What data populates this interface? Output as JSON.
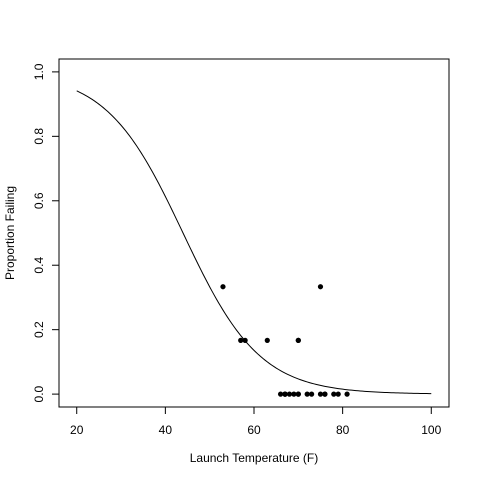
{
  "chart_data": {
    "type": "scatter",
    "title": "",
    "xlabel": "Launch Temperature (F)",
    "ylabel": "Proportion Failing",
    "xlim": [
      16,
      104
    ],
    "ylim": [
      -0.04,
      1.04
    ],
    "x_ticks": [
      20,
      40,
      60,
      80,
      100
    ],
    "y_ticks": [
      0.0,
      0.2,
      0.4,
      0.6,
      0.8,
      1.0
    ],
    "x_tick_labels": [
      "20",
      "40",
      "60",
      "80",
      "100"
    ],
    "y_tick_labels": [
      "0.0",
      "0.2",
      "0.4",
      "0.6",
      "0.8",
      "1.0"
    ],
    "grid": false,
    "points": [
      {
        "x": 53,
        "y": 0.3333
      },
      {
        "x": 57,
        "y": 0.1667
      },
      {
        "x": 58,
        "y": 0.1667
      },
      {
        "x": 63,
        "y": 0.1667
      },
      {
        "x": 66,
        "y": 0.0
      },
      {
        "x": 67,
        "y": 0.0
      },
      {
        "x": 67,
        "y": 0.0
      },
      {
        "x": 67,
        "y": 0.0
      },
      {
        "x": 68,
        "y": 0.0
      },
      {
        "x": 69,
        "y": 0.0
      },
      {
        "x": 70,
        "y": 0.1667
      },
      {
        "x": 70,
        "y": 0.0
      },
      {
        "x": 70,
        "y": 0.1667
      },
      {
        "x": 70,
        "y": 0.0
      },
      {
        "x": 72,
        "y": 0.0
      },
      {
        "x": 73,
        "y": 0.0
      },
      {
        "x": 75,
        "y": 0.0
      },
      {
        "x": 75,
        "y": 0.3333
      },
      {
        "x": 76,
        "y": 0.0
      },
      {
        "x": 76,
        "y": 0.0
      },
      {
        "x": 78,
        "y": 0.0
      },
      {
        "x": 79,
        "y": 0.0
      },
      {
        "x": 81,
        "y": 0.0
      }
    ],
    "fitted_curve": {
      "type": "logistic",
      "intercept": 5.085,
      "slope": -0.1156,
      "x_range": [
        20,
        100
      ]
    }
  }
}
